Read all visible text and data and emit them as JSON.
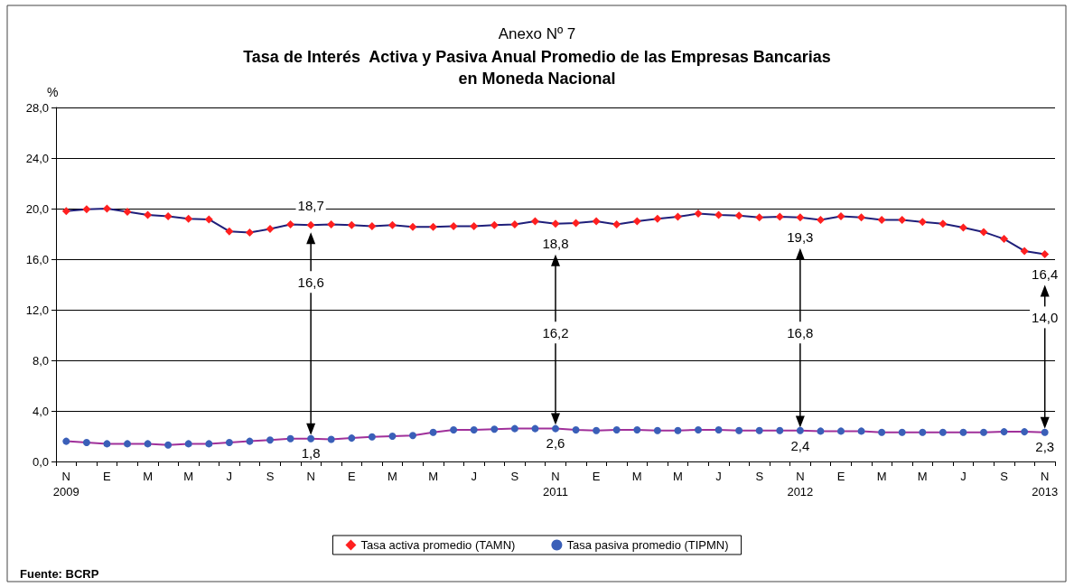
{
  "chart_data": {
    "type": "line",
    "subtitle": "Anexo Nº 7",
    "title": "Tasa de Interés  Activa y Pasiva Anual Promedio de las Empresas Bancarias\nen Moneda Nacional",
    "ylabel": "%",
    "categories": [
      "N\n2009",
      null,
      "E",
      null,
      "M",
      null,
      "M",
      null,
      "J",
      null,
      "S",
      null,
      "N",
      null,
      "E",
      null,
      "M",
      null,
      "M",
      null,
      "J",
      null,
      "S",
      null,
      "N\n2011",
      null,
      "E",
      null,
      "M",
      null,
      "M",
      null,
      "J",
      null,
      "S",
      null,
      "N\n2012",
      null,
      "E",
      null,
      "M",
      null,
      "M",
      null,
      "J",
      null,
      "S",
      null,
      "N\n2013"
    ],
    "series": [
      {
        "name": "Tasa activa promedio (TAMN)",
        "color": "#ff2020",
        "marker": "diamond",
        "values": [
          19.8,
          19.95,
          20.0,
          19.75,
          19.5,
          19.4,
          19.2,
          19.15,
          18.2,
          18.1,
          18.4,
          18.75,
          18.7,
          18.75,
          18.7,
          18.6,
          18.7,
          18.55,
          18.55,
          18.6,
          18.6,
          18.7,
          18.75,
          19.0,
          18.8,
          18.85,
          19.0,
          18.75,
          19.0,
          19.2,
          19.35,
          19.6,
          19.5,
          19.45,
          19.3,
          19.35,
          19.3,
          19.1,
          19.4,
          19.3,
          19.1,
          19.1,
          18.95,
          18.8,
          18.5,
          18.15,
          17.6,
          16.65,
          16.4
        ]
      },
      {
        "name": "Tasa pasiva promedio (TIPMN)",
        "color": "#3a5fb8",
        "marker": "circle",
        "values": [
          1.6,
          1.5,
          1.4,
          1.4,
          1.4,
          1.3,
          1.4,
          1.4,
          1.5,
          1.6,
          1.7,
          1.8,
          1.8,
          1.75,
          1.85,
          1.95,
          2.0,
          2.05,
          2.3,
          2.5,
          2.5,
          2.55,
          2.6,
          2.6,
          2.6,
          2.5,
          2.45,
          2.5,
          2.5,
          2.45,
          2.45,
          2.5,
          2.5,
          2.45,
          2.45,
          2.45,
          2.45,
          2.4,
          2.4,
          2.4,
          2.3,
          2.3,
          2.3,
          2.3,
          2.3,
          2.3,
          2.35,
          2.35,
          2.3
        ]
      }
    ],
    "ylim": [
      0,
      28
    ],
    "yticks": [
      {
        "value": 0,
        "label": "0,0"
      },
      {
        "value": 4,
        "label": "4,0"
      },
      {
        "value": 8,
        "label": "8,0"
      },
      {
        "value": 12,
        "label": "12,0"
      },
      {
        "value": 16,
        "label": "16,0"
      },
      {
        "value": 20,
        "label": "20,0"
      },
      {
        "value": 24,
        "label": "24,0"
      },
      {
        "value": 28,
        "label": "28,0"
      }
    ],
    "grid": "y",
    "legend": "bottom",
    "line_style": "solid",
    "annotations": [
      {
        "text": "18,7",
        "x": "N",
        "y": 18.7
      },
      {
        "text": "16,6",
        "x": "N",
        "y": 14.2
      },
      {
        "text": "1,8",
        "x": "N",
        "y": 1.8
      },
      {
        "text": "18,8",
        "x": "N\n2011",
        "y": 18.8
      },
      {
        "text": "16,2",
        "x": "N\n2011",
        "y": 10.2
      },
      {
        "text": "2,6",
        "x": "N\n2011",
        "y": 2.6
      },
      {
        "text": "19,3",
        "x": "N\n2012",
        "y": 19.3
      },
      {
        "text": "16,8",
        "x": "N\n2012",
        "y": 10.2
      },
      {
        "text": "2,4",
        "x": "N\n2012",
        "y": 2.4
      },
      {
        "text": "16,4",
        "x": "N\n2013",
        "y": 16.4
      },
      {
        "text": "14,0",
        "x": "N\n2013",
        "y": 11.4
      },
      {
        "text": "2,3",
        "x": "N\n2013",
        "y": 2.3
      },
      "Fuente: BCRP"
    ]
  }
}
